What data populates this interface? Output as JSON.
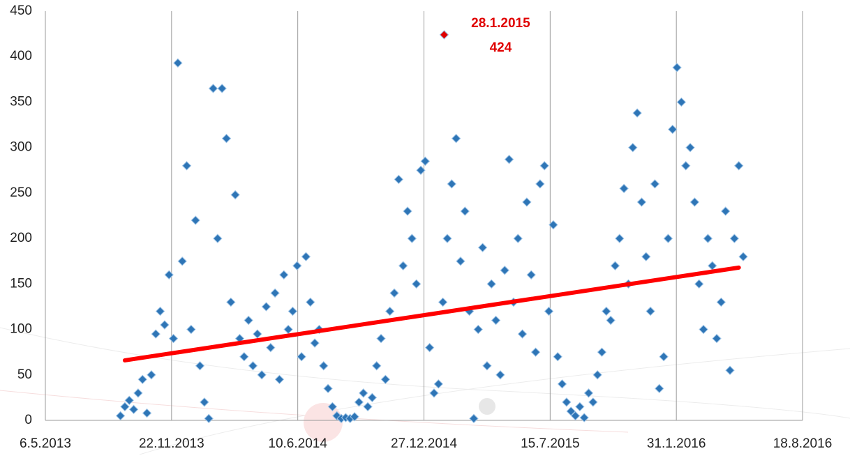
{
  "chart_data": {
    "type": "scatter",
    "xlim": [
      "2013-05-06",
      "2016-08-18"
    ],
    "xticks": [
      {
        "value": "2013-05-06",
        "label": "6.5.2013"
      },
      {
        "value": "2013-11-22",
        "label": "22.11.2013"
      },
      {
        "value": "2014-06-10",
        "label": "10.6.2014"
      },
      {
        "value": "2014-12-27",
        "label": "27.12.2014"
      },
      {
        "value": "2015-07-15",
        "label": "15.7.2015"
      },
      {
        "value": "2016-01-31",
        "label": "31.1.2016"
      },
      {
        "value": "2016-08-18",
        "label": "18.8.2016"
      }
    ],
    "ylim": [
      0,
      450
    ],
    "yticks": [
      0,
      50,
      100,
      150,
      200,
      250,
      300,
      350,
      400,
      450
    ],
    "grid": true,
    "series": [
      {
        "color": "#2e75b6",
        "x": [
          "2013-09-02",
          "2013-09-09",
          "2013-09-16",
          "2013-09-23",
          "2013-09-30",
          "2013-10-07",
          "2013-10-14",
          "2013-10-21",
          "2013-10-28",
          "2013-11-04",
          "2013-11-11",
          "2013-11-18",
          "2013-11-25",
          "2013-12-02",
          "2013-12-09",
          "2013-12-16",
          "2013-12-23",
          "2013-12-30",
          "2014-01-06",
          "2014-01-13",
          "2014-01-20",
          "2014-01-27",
          "2014-02-03",
          "2014-02-10",
          "2014-02-17",
          "2014-02-24",
          "2014-03-03",
          "2014-03-10",
          "2014-03-17",
          "2014-03-24",
          "2014-03-31",
          "2014-04-07",
          "2014-04-14",
          "2014-04-21",
          "2014-04-28",
          "2014-05-05",
          "2014-05-12",
          "2014-05-19",
          "2014-05-26",
          "2014-06-02",
          "2014-06-09",
          "2014-06-16",
          "2014-06-23",
          "2014-06-30",
          "2014-07-07",
          "2014-07-14",
          "2014-07-21",
          "2014-07-28",
          "2014-08-04",
          "2014-08-11",
          "2014-08-18",
          "2014-08-25",
          "2014-09-01",
          "2014-09-08",
          "2014-09-15",
          "2014-09-22",
          "2014-09-29",
          "2014-10-06",
          "2014-10-13",
          "2014-10-20",
          "2014-10-27",
          "2014-11-03",
          "2014-11-10",
          "2014-11-17",
          "2014-11-24",
          "2014-12-01",
          "2014-12-08",
          "2014-12-15",
          "2014-12-22",
          "2014-12-29",
          "2015-01-05",
          "2015-01-12",
          "2015-01-19",
          "2015-01-26",
          "2015-02-02",
          "2015-02-09",
          "2015-02-16",
          "2015-02-23",
          "2015-03-02",
          "2015-03-09",
          "2015-03-16",
          "2015-03-23",
          "2015-03-30",
          "2015-04-06",
          "2015-04-13",
          "2015-04-20",
          "2015-04-27",
          "2015-05-04",
          "2015-05-11",
          "2015-05-18",
          "2015-05-25",
          "2015-06-01",
          "2015-06-08",
          "2015-06-15",
          "2015-06-22",
          "2015-06-29",
          "2015-07-06",
          "2015-07-13",
          "2015-07-20",
          "2015-07-27",
          "2015-08-03",
          "2015-08-10",
          "2015-08-17",
          "2015-08-24",
          "2015-08-31",
          "2015-09-07",
          "2015-09-14",
          "2015-09-21",
          "2015-09-28",
          "2015-10-05",
          "2015-10-12",
          "2015-10-19",
          "2015-10-26",
          "2015-11-02",
          "2015-11-09",
          "2015-11-16",
          "2015-11-23",
          "2015-11-30",
          "2015-12-07",
          "2015-12-14",
          "2015-12-21",
          "2015-12-28",
          "2016-01-04",
          "2016-01-11",
          "2016-01-18",
          "2016-01-25",
          "2016-02-01",
          "2016-02-08",
          "2016-02-15",
          "2016-02-22",
          "2016-02-29",
          "2016-03-07",
          "2016-03-14",
          "2016-03-21",
          "2016-03-28",
          "2016-04-04",
          "2016-04-11",
          "2016-04-18",
          "2016-04-25",
          "2016-05-02",
          "2016-05-09",
          "2016-05-16"
        ],
        "values": [
          5,
          15,
          22,
          12,
          30,
          45,
          8,
          50,
          95,
          120,
          105,
          160,
          90,
          393,
          175,
          280,
          100,
          220,
          60,
          20,
          2,
          365,
          200,
          365,
          310,
          130,
          248,
          90,
          70,
          110,
          60,
          95,
          50,
          125,
          80,
          140,
          45,
          160,
          100,
          120,
          170,
          70,
          180,
          130,
          85,
          100,
          60,
          35,
          15,
          5,
          2,
          3,
          2,
          4,
          20,
          30,
          15,
          25,
          60,
          90,
          45,
          120,
          140,
          265,
          170,
          230,
          200,
          150,
          275,
          285,
          80,
          30,
          40,
          130,
          200,
          260,
          310,
          175,
          230,
          120,
          2,
          100,
          190,
          60,
          150,
          110,
          50,
          165,
          287,
          130,
          200,
          95,
          240,
          160,
          75,
          260,
          280,
          120,
          215,
          70,
          40,
          20,
          10,
          5,
          15,
          3,
          30,
          20,
          50,
          75,
          120,
          110,
          170,
          200,
          255,
          150,
          300,
          338,
          240,
          180,
          120,
          260,
          35,
          70,
          200,
          320,
          388,
          350,
          280,
          300,
          240,
          150,
          100,
          200,
          170,
          90,
          130,
          230,
          55,
          200,
          280,
          180
        ]
      }
    ],
    "trendline": {
      "color": "#ff0000",
      "x": [
        "2013-09-09",
        "2016-05-09"
      ],
      "values": [
        66,
        168
      ]
    },
    "highlight": {
      "color": "#e00000",
      "x": "2015-01-28",
      "value": 424,
      "label": "28.1.2015"
    }
  }
}
